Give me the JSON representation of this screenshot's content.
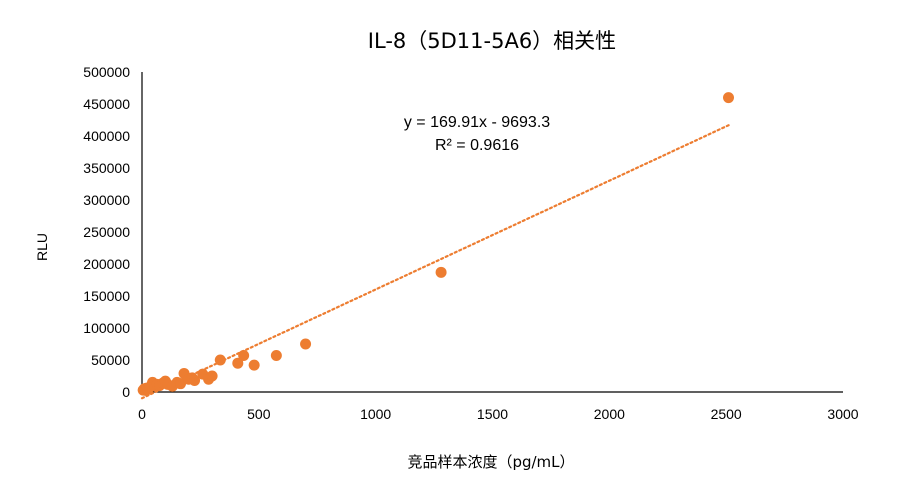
{
  "chart_data": {
    "type": "scatter",
    "title": "IL-8（5D11-5A6）相关性",
    "xlabel": "竞品样本浓度（pg/mL）",
    "ylabel": "RLU",
    "xlim": [
      0,
      3000
    ],
    "ylim": [
      0,
      500000
    ],
    "x_ticks": [
      "0",
      "500",
      "1000",
      "1500",
      "2000",
      "2500",
      "3000"
    ],
    "y_ticks": [
      "0",
      "50000",
      "100000",
      "150000",
      "200000",
      "250000",
      "300000",
      "350000",
      "400000",
      "450000",
      "500000"
    ],
    "grid": false,
    "legend": "none",
    "point_color": "#ED7D31",
    "trendline": {
      "equation": "y = 169.91x - 9693.3",
      "r2": "R² = 0.9616",
      "slope": 169.91,
      "intercept": -9693.3,
      "x_range": [
        0,
        2520
      ],
      "style": "dotted",
      "color": "#ED7D31"
    },
    "points": [
      {
        "x": 5,
        "y": 3000
      },
      {
        "x": 10,
        "y": 5000
      },
      {
        "x": 15,
        "y": 2500
      },
      {
        "x": 20,
        "y": 6000
      },
      {
        "x": 25,
        "y": 4000
      },
      {
        "x": 35,
        "y": 8000
      },
      {
        "x": 45,
        "y": 15000
      },
      {
        "x": 55,
        "y": 9000
      },
      {
        "x": 65,
        "y": 12000
      },
      {
        "x": 75,
        "y": 10000
      },
      {
        "x": 90,
        "y": 14000
      },
      {
        "x": 100,
        "y": 17000
      },
      {
        "x": 110,
        "y": 12000
      },
      {
        "x": 130,
        "y": 9000
      },
      {
        "x": 150,
        "y": 15000
      },
      {
        "x": 165,
        "y": 13000
      },
      {
        "x": 180,
        "y": 29000
      },
      {
        "x": 200,
        "y": 20000
      },
      {
        "x": 215,
        "y": 22000
      },
      {
        "x": 225,
        "y": 18000
      },
      {
        "x": 260,
        "y": 28000
      },
      {
        "x": 285,
        "y": 20000
      },
      {
        "x": 300,
        "y": 25000
      },
      {
        "x": 335,
        "y": 50000
      },
      {
        "x": 410,
        "y": 45000
      },
      {
        "x": 435,
        "y": 57000
      },
      {
        "x": 480,
        "y": 42000
      },
      {
        "x": 575,
        "y": 57000
      },
      {
        "x": 700,
        "y": 75000
      },
      {
        "x": 1280,
        "y": 187000
      },
      {
        "x": 2510,
        "y": 460000
      }
    ]
  }
}
